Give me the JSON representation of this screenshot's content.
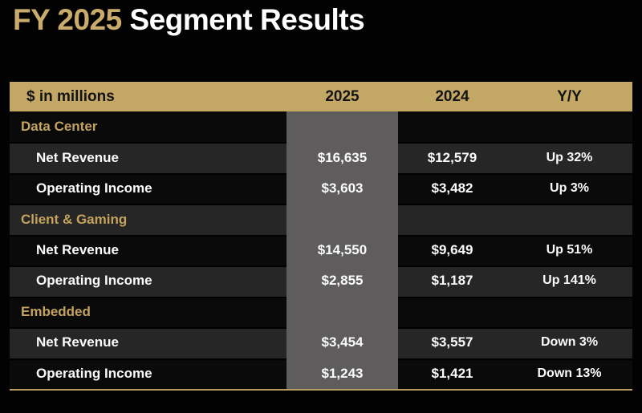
{
  "colors": {
    "page_bg": "#020202",
    "title_gold": "#c9ab6b",
    "title_white": "#ffffff",
    "header_bg": "#c2a765",
    "header_text": "#131313",
    "section_text_gold": "#c5a35e",
    "row_dark_bg": "#0a0a0a",
    "row_light_bg": "#262626",
    "highlight_band_gray": "#5e5c5c",
    "value_text": "#fbfbfb",
    "bottom_rule_gold": "#b69d5f"
  },
  "title": {
    "highlight": "FY 2025",
    "rest": " Segment Results"
  },
  "table": {
    "headers": {
      "label": "$ in millions",
      "col2025": "2025",
      "col2024": "2024",
      "yy": "Y/Y"
    },
    "rows": [
      {
        "type": "section",
        "label": "Data Center",
        "v2025": "",
        "v2024": "",
        "yy": ""
      },
      {
        "type": "item",
        "label": "Net Revenue",
        "v2025": "$16,635",
        "v2024": "$12,579",
        "yy": "Up 32%"
      },
      {
        "type": "item",
        "label": "Operating Income",
        "v2025": "$3,603",
        "v2024": "$3,482",
        "yy": "Up 3%"
      },
      {
        "type": "section",
        "label": "Client & Gaming",
        "v2025": "",
        "v2024": "",
        "yy": ""
      },
      {
        "type": "item",
        "label": "Net Revenue",
        "v2025": "$14,550",
        "v2024": "$9,649",
        "yy": "Up 51%"
      },
      {
        "type": "item",
        "label": "Operating Income",
        "v2025": "$2,855",
        "v2024": "$1,187",
        "yy": "Up 141%"
      },
      {
        "type": "section",
        "label": "Embedded",
        "v2025": "",
        "v2024": "",
        "yy": ""
      },
      {
        "type": "item",
        "label": "Net Revenue",
        "v2025": "$3,454",
        "v2024": "$3,557",
        "yy": "Down 3%"
      },
      {
        "type": "item",
        "label": "Operating Income",
        "v2025": "$1,243",
        "v2024": "$1,421",
        "yy": "Down 13%"
      }
    ]
  },
  "chart_data": {
    "type": "table",
    "title": "FY 2025 Segment Results",
    "units": "$ in millions",
    "columns": [
      "$ in millions",
      "2025",
      "2024",
      "Y/Y"
    ],
    "highlighted_column": "2025",
    "sections": [
      {
        "segment": "Data Center",
        "rows": [
          {
            "metric": "Net Revenue",
            "fy2025": 16635,
            "fy2024": 12579,
            "yoy": "Up 32%"
          },
          {
            "metric": "Operating Income",
            "fy2025": 3603,
            "fy2024": 3482,
            "yoy": "Up 3%"
          }
        ]
      },
      {
        "segment": "Client & Gaming",
        "rows": [
          {
            "metric": "Net Revenue",
            "fy2025": 14550,
            "fy2024": 9649,
            "yoy": "Up 51%"
          },
          {
            "metric": "Operating Income",
            "fy2025": 2855,
            "fy2024": 1187,
            "yoy": "Up 141%"
          }
        ]
      },
      {
        "segment": "Embedded",
        "rows": [
          {
            "metric": "Net Revenue",
            "fy2025": 3454,
            "fy2024": 3557,
            "yoy": "Down 3%"
          },
          {
            "metric": "Operating Income",
            "fy2025": 1243,
            "fy2024": 1421,
            "yoy": "Down 13%"
          }
        ]
      }
    ]
  }
}
